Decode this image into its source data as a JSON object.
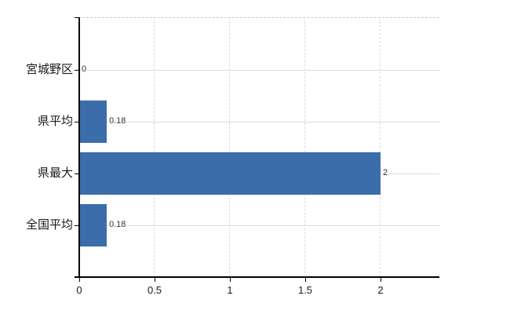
{
  "chart_data": {
    "type": "bar",
    "orientation": "horizontal",
    "title": "",
    "xlabel": "",
    "ylabel": "",
    "categories": [
      "宮城野区",
      "県平均",
      "県最大",
      "全国平均"
    ],
    "values": [
      0,
      0.18,
      2,
      0.18
    ],
    "value_labels": [
      "0",
      "0.18",
      "2",
      "0.18"
    ],
    "xlim": [
      0,
      2.4
    ],
    "xticks": [
      0,
      0.5,
      1,
      1.5,
      2
    ],
    "xtick_labels": [
      "0",
      "0.5",
      "1",
      "1.5",
      "2"
    ],
    "grid": true,
    "legend": false,
    "bar_color": "#3c6dab"
  },
  "colors": {
    "bar": "#3c6dab",
    "axis": "#000000",
    "hgrid": "#d6ded6",
    "vgrid": "#d9dcd9",
    "top_border": "#c9c9c9",
    "text": "#1a1a1a",
    "value_text": "#333333",
    "background": "#ffffff"
  }
}
